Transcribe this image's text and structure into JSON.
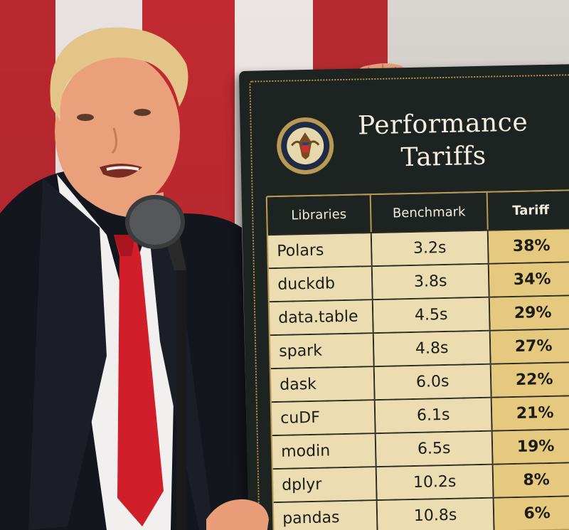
{
  "sign": {
    "title_line1": "Performance",
    "title_line2": "Tariffs",
    "seal_icon": "presidential-seal-icon"
  },
  "table": {
    "headers": [
      "Libraries",
      "Benchmark",
      "Tariff"
    ],
    "rows": [
      {
        "library": "Polars",
        "benchmark": "3.2s",
        "tariff": "38%"
      },
      {
        "library": "duckdb",
        "benchmark": "3.8s",
        "tariff": "34%"
      },
      {
        "library": "data.table",
        "benchmark": "4.5s",
        "tariff": "29%"
      },
      {
        "library": "spark",
        "benchmark": "4.8s",
        "tariff": "27%"
      },
      {
        "library": "dask",
        "benchmark": "6.0s",
        "tariff": "22%"
      },
      {
        "library": "cuDF",
        "benchmark": "6.1s",
        "tariff": "21%"
      },
      {
        "library": "modin",
        "benchmark": "6.5s",
        "tariff": "19%"
      },
      {
        "library": "dplyr",
        "benchmark": "10.2s",
        "tariff": "8%"
      },
      {
        "library": "pandas",
        "benchmark": "10.8s",
        "tariff": "6%"
      }
    ]
  },
  "colors": {
    "board": "#1d2320",
    "gold": "#b89a52",
    "cell_light": "#ecdcb2",
    "cell_tariff": "#e5c97e"
  }
}
